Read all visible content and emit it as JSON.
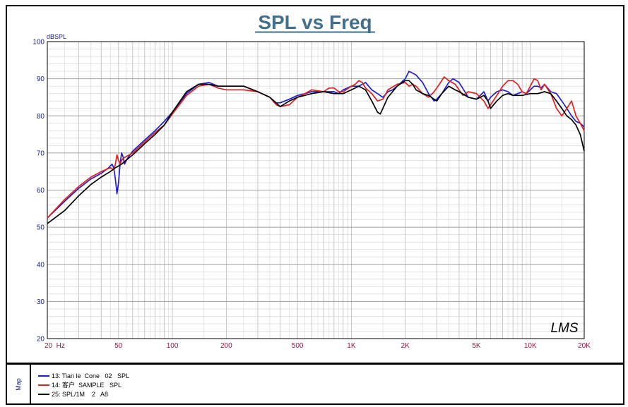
{
  "chart_data": {
    "type": "line",
    "title": "SPL vs Freq",
    "ylabel": "dBSPL",
    "xscale": "log",
    "xlim": [
      20,
      20000
    ],
    "ylim": [
      20,
      100
    ],
    "yticks": [
      20,
      30,
      40,
      50,
      60,
      70,
      80,
      90,
      100
    ],
    "xticks": [
      {
        "value": 20,
        "label": "20  Hz"
      },
      {
        "value": 50,
        "label": "50"
      },
      {
        "value": 100,
        "label": "100"
      },
      {
        "value": 200,
        "label": "200"
      },
      {
        "value": 500,
        "label": "500"
      },
      {
        "value": 1000,
        "label": "1K"
      },
      {
        "value": 2000,
        "label": "2K"
      },
      {
        "value": 5000,
        "label": "5K"
      },
      {
        "value": 10000,
        "label": "10K"
      },
      {
        "value": 20000,
        "label": "20K"
      }
    ],
    "grid": true,
    "watermark": "LMS",
    "series": [
      {
        "name": "13: Tian le  Cone   02   SPL",
        "color": "#1f1fd0",
        "x": [
          20,
          25,
          30,
          35,
          40,
          44,
          46,
          47,
          48,
          49,
          50,
          51,
          52,
          53,
          54,
          56,
          60,
          70,
          80,
          90,
          100,
          120,
          140,
          160,
          180,
          200,
          250,
          300,
          350,
          380,
          400,
          450,
          500,
          550,
          600,
          700,
          800,
          850,
          900,
          1000,
          1100,
          1200,
          1300,
          1400,
          1500,
          1600,
          1700,
          1800,
          2000,
          2100,
          2200,
          2300,
          2500,
          2700,
          2900,
          3000,
          3200,
          3500,
          3700,
          4000,
          4500,
          5000,
          5500,
          5800,
          6000,
          6500,
          7000,
          7500,
          8000,
          8500,
          9000,
          9500,
          10000,
          10500,
          11000,
          11500,
          12000,
          13000,
          14000,
          15000,
          16000,
          17000,
          18000,
          19000,
          20000
        ],
        "y": [
          52.5,
          57,
          60.5,
          63,
          64.5,
          66,
          67,
          66,
          63,
          59,
          62,
          67,
          70,
          69,
          67,
          68.5,
          70.5,
          73.5,
          76,
          78.5,
          81,
          86,
          88.5,
          89,
          88,
          88,
          88,
          86.5,
          85,
          83.5,
          83.5,
          84.5,
          85.5,
          86,
          86.5,
          86.5,
          86.5,
          86,
          87,
          88,
          88,
          89,
          87,
          86,
          85,
          86.5,
          87,
          88,
          90,
          92,
          91.5,
          91,
          89,
          86,
          84,
          84.5,
          86,
          89,
          90,
          89,
          85,
          84.5,
          86.5,
          84,
          85,
          86.5,
          87,
          86.5,
          85.5,
          86,
          86.5,
          86,
          87,
          88,
          88,
          87.5,
          88.5,
          86.5,
          86,
          84,
          82,
          80,
          78.5,
          78,
          77
        ]
      },
      {
        "name": "14: 客户  SAMPLE   SPL",
        "color": "#e02020",
        "x": [
          20,
          25,
          30,
          35,
          40,
          45,
          47,
          48,
          49,
          50,
          51,
          52,
          53,
          55,
          60,
          70,
          80,
          90,
          100,
          120,
          140,
          160,
          180,
          200,
          250,
          300,
          350,
          380,
          400,
          450,
          500,
          550,
          600,
          700,
          750,
          800,
          850,
          900,
          1000,
          1050,
          1100,
          1150,
          1200,
          1300,
          1400,
          1500,
          1600,
          1800,
          2000,
          2100,
          2200,
          2300,
          2500,
          2700,
          2900,
          3100,
          3300,
          3500,
          3800,
          4000,
          4200,
          4500,
          5000,
          5500,
          5800,
          6000,
          6500,
          7000,
          7500,
          8000,
          8500,
          9000,
          9500,
          10000,
          10500,
          11000,
          11500,
          12000,
          13000,
          14000,
          15000,
          16000,
          17000,
          18000,
          19000,
          20000
        ],
        "y": [
          52.5,
          57.5,
          61,
          63.5,
          65,
          66,
          65.5,
          67,
          69.5,
          68,
          67,
          68,
          68.5,
          69,
          70,
          73,
          75.5,
          77.5,
          80.5,
          85.5,
          88,
          88.5,
          87.5,
          87,
          87,
          86.5,
          85,
          83,
          82.5,
          83,
          85,
          86,
          87,
          86.5,
          87.5,
          87.5,
          86.5,
          86.5,
          88,
          88.5,
          89.5,
          89,
          87.5,
          86,
          84,
          84.5,
          87,
          88.5,
          89,
          88,
          88.5,
          88,
          86,
          85,
          86.5,
          88.5,
          90.5,
          89.5,
          88.5,
          87,
          85.5,
          86.5,
          86,
          84,
          82,
          83,
          85.5,
          88,
          89.5,
          89.5,
          88.5,
          86.5,
          86,
          88,
          90,
          89.5,
          87,
          88.5,
          86,
          82,
          80,
          82,
          84,
          80,
          78,
          76
        ]
      },
      {
        "name": "25: SPL/1M    2   A8",
        "color": "#000000",
        "x": [
          20,
          25,
          30,
          35,
          40,
          45,
          48,
          50,
          52,
          55,
          60,
          70,
          80,
          90,
          100,
          120,
          140,
          160,
          180,
          200,
          250,
          300,
          350,
          400,
          450,
          500,
          600,
          700,
          800,
          900,
          1000,
          1100,
          1200,
          1300,
          1400,
          1450,
          1500,
          1600,
          1700,
          1800,
          2000,
          2100,
          2200,
          2300,
          2500,
          2700,
          3000,
          3200,
          3500,
          3800,
          4000,
          4500,
          5000,
          5500,
          5800,
          6000,
          6500,
          7000,
          7500,
          8000,
          9000,
          10000,
          11000,
          12000,
          13000,
          14000,
          15000,
          16000,
          17000,
          18000,
          19000,
          20000
        ],
        "y": [
          51,
          54.5,
          58.5,
          61.5,
          63.5,
          65,
          66,
          66.5,
          67,
          68,
          69.5,
          72.5,
          75,
          77.5,
          81,
          86.5,
          88.5,
          88.5,
          88,
          88,
          88,
          86.5,
          85,
          82.5,
          84,
          85,
          86,
          86.5,
          86,
          86,
          87,
          88,
          87,
          84,
          81,
          80.5,
          82,
          85,
          86.5,
          88,
          89.5,
          89.5,
          88.5,
          87,
          86,
          85.5,
          84,
          86,
          88,
          87,
          86.5,
          85,
          84.5,
          85.5,
          84,
          82,
          84,
          85.5,
          86,
          85.5,
          85.5,
          86,
          86,
          86.5,
          86,
          84,
          82,
          80,
          79,
          77.5,
          75,
          70.5
        ]
      }
    ]
  }
}
